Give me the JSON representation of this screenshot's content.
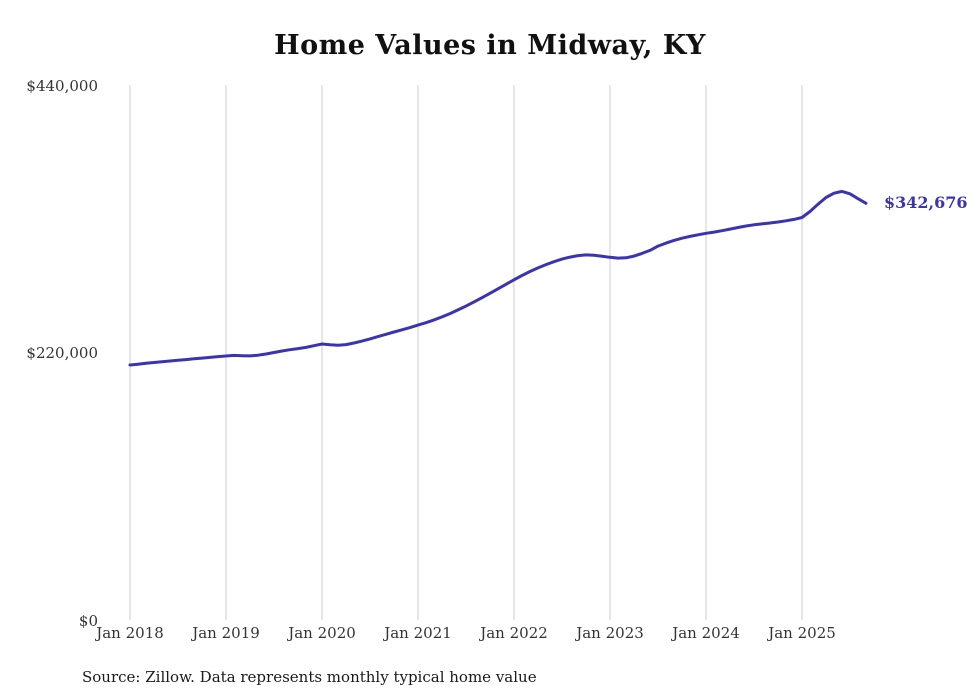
{
  "title": "Home Values in Midway, KY",
  "source_note": "Source: Zillow. Data represents monthly typical home value",
  "end_label": "$342,676",
  "colors": {
    "line": "#3a34b2",
    "grid": "#cccccc",
    "text": "#333333",
    "title": "#111111"
  },
  "chart_data": {
    "type": "line",
    "title": "Home Values in Midway, KY",
    "xlabel": "",
    "ylabel": "",
    "ylim": [
      0,
      440000
    ],
    "y_tick_labels": [
      "$0",
      "$220,000",
      "$440,000"
    ],
    "y_tick_values": [
      0,
      220000,
      440000
    ],
    "x_tick_labels": [
      "Jan 2018",
      "Jan 2019",
      "Jan 2020",
      "Jan 2021",
      "Jan 2022",
      "Jan 2023",
      "Jan 2024",
      "Jan 2025"
    ],
    "grid": "vertical-only",
    "legend": "none",
    "series_name": "Typical home value (monthly, Zillow)",
    "x_start": "2018-01",
    "x_step_months": 1,
    "last_value_label": "$342,676",
    "values": [
      209700,
      210400,
      211100,
      211800,
      212400,
      213000,
      213600,
      214200,
      214800,
      215400,
      216000,
      216600,
      217100,
      217600,
      217400,
      217200,
      217800,
      218800,
      220000,
      221200,
      222300,
      223200,
      224200,
      225600,
      227000,
      226400,
      226000,
      226500,
      227800,
      229400,
      231200,
      233100,
      235000,
      236900,
      238700,
      240500,
      242500,
      244500,
      246800,
      249300,
      252000,
      255000,
      258200,
      261600,
      265100,
      268700,
      272400,
      276100,
      279800,
      283300,
      286600,
      289600,
      292300,
      294700,
      296800,
      298500,
      299700,
      300300,
      300000,
      299200,
      298300,
      297600,
      297900,
      299300,
      301500,
      304000,
      307500,
      310000,
      312200,
      314000,
      315500,
      316800,
      318000,
      319000,
      320200,
      321500,
      322800,
      324000,
      325000,
      325800,
      326500,
      327300,
      328300,
      329500,
      331000,
      336000,
      342000,
      347500,
      351000,
      352500,
      350500,
      346500,
      342676
    ]
  },
  "layout_labels": {
    "y0": "$0",
    "y1": "$220,000",
    "y2": "$440,000"
  }
}
